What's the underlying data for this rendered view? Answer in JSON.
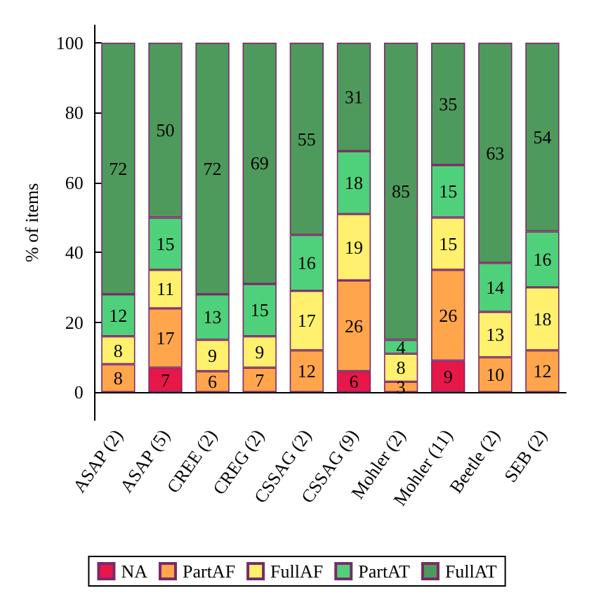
{
  "chart_data": {
    "type": "bar",
    "stacked": true,
    "ylabel": "% of items",
    "ylim": [
      -8,
      105
    ],
    "yticks": [
      0,
      20,
      40,
      60,
      80,
      100
    ],
    "grid": false,
    "legend": "bottom",
    "categories": [
      "ASAP (2)",
      "ASAP (5)",
      "CREE (2)",
      "CREG (2)",
      "CSSAG (2)",
      "CSSAG (9)",
      "Mohler (2)",
      "Mohler (11)",
      "Beetle (2)",
      "SEB (2)"
    ],
    "series": [
      {
        "name": "NA",
        "color": "#e8174a",
        "values": [
          0,
          7,
          0,
          0,
          0,
          6,
          0,
          9,
          0,
          0
        ],
        "value_labels": [
          null,
          "7",
          null,
          null,
          null,
          "6",
          null,
          "9",
          null,
          null
        ]
      },
      {
        "name": "PartAF",
        "color": "#ffa54c",
        "values": [
          8,
          17,
          6,
          7,
          12,
          26,
          3,
          26,
          10,
          12
        ],
        "value_labels": [
          "8",
          "17",
          "6",
          "7",
          "12",
          "26",
          "3",
          "26",
          "10",
          "12"
        ]
      },
      {
        "name": "FullAF",
        "color": "#fff06e",
        "values": [
          8,
          11,
          9,
          9,
          17,
          19,
          8,
          15,
          13,
          18
        ],
        "value_labels": [
          "8",
          "11",
          "9",
          "9",
          "17",
          "19",
          "8",
          "15",
          "13",
          "18"
        ]
      },
      {
        "name": "PartAT",
        "color": "#4fd07a",
        "values": [
          12,
          15,
          13,
          15,
          16,
          18,
          4,
          15,
          14,
          16
        ],
        "value_labels": [
          "12",
          "15",
          "13",
          "15",
          "16",
          "18",
          "4",
          "15",
          "14",
          "16"
        ]
      },
      {
        "name": "FullAT",
        "color": "#4e9a5c",
        "values": [
          72,
          50,
          72,
          69,
          55,
          31,
          85,
          35,
          63,
          54
        ],
        "value_labels": [
          "72",
          "50",
          "72",
          "69",
          "55",
          "31",
          "85",
          "35",
          "63",
          "54"
        ]
      }
    ]
  }
}
